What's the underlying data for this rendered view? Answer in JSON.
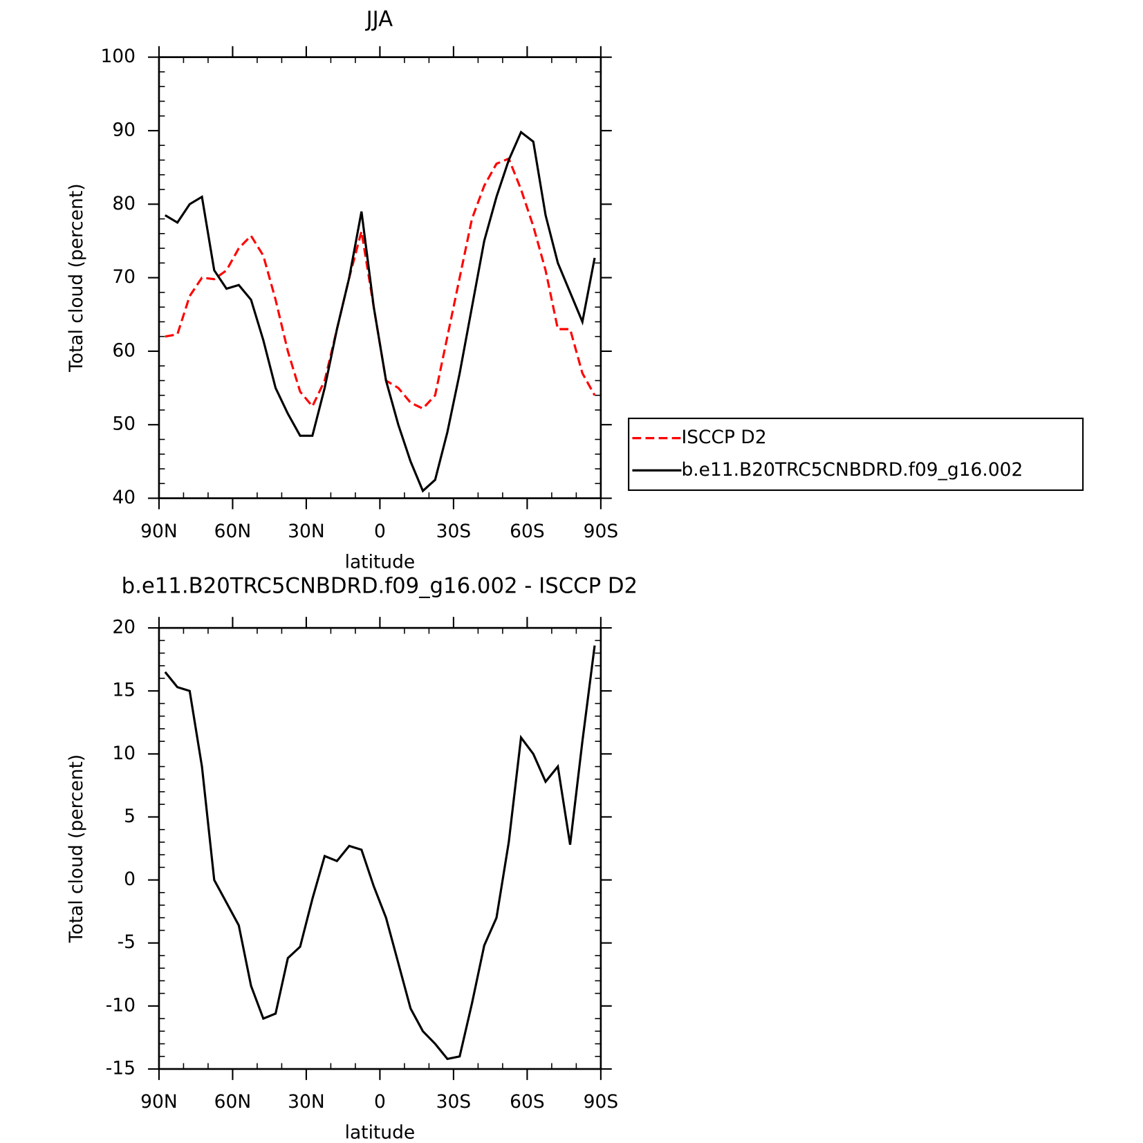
{
  "chart_data": [
    {
      "type": "line",
      "title": "JJA",
      "xlabel": "latitude",
      "ylabel": "Total cloud (percent)",
      "x": [
        87.5,
        82.5,
        77.5,
        72.5,
        67.5,
        62.5,
        57.5,
        52.5,
        47.5,
        42.5,
        37.5,
        32.5,
        27.5,
        22.5,
        17.5,
        12.5,
        7.5,
        2.5,
        -2.5,
        -7.5,
        -12.5,
        -17.5,
        -22.5,
        -27.5,
        -32.5,
        -37.5,
        -42.5,
        -47.5,
        -52.5,
        -57.5,
        -62.5,
        -67.5,
        -72.5,
        -77.5,
        -82.5,
        -87.5
      ],
      "series": [
        {
          "name": "ISCCP D2",
          "color": "#ff0000",
          "dash": true,
          "values": [
            62,
            62.3,
            67.5,
            70,
            69.8,
            71,
            74,
            75.7,
            73,
            67,
            60,
            54.5,
            52.5,
            56,
            63,
            70,
            76.3,
            66,
            56,
            55,
            53,
            52.2,
            54,
            62,
            70,
            78,
            82.5,
            85.5,
            86.2,
            82,
            77,
            71,
            63,
            63,
            57,
            54
          ]
        },
        {
          "name": "b.e11.B20TRC5CNBDRD.f09_g16.002",
          "color": "#000000",
          "dash": false,
          "values": [
            78.5,
            77.5,
            80,
            81,
            71,
            68.5,
            69,
            67,
            61.5,
            55,
            51.5,
            48.5,
            48.5,
            55,
            63,
            70,
            79,
            66,
            56,
            50,
            45,
            41,
            42.5,
            49,
            57,
            66,
            75,
            81,
            86,
            89.8,
            88.5,
            78.5,
            72,
            68,
            64,
            72.7
          ]
        }
      ],
      "xlim": [
        90,
        -90
      ],
      "ylim": [
        40,
        100
      ],
      "xticks": [
        {
          "value": 90,
          "label": "90N"
        },
        {
          "value": 60,
          "label": "60N"
        },
        {
          "value": 30,
          "label": "30N"
        },
        0,
        {
          "value": -30,
          "label": "30S"
        },
        {
          "value": -60,
          "label": "60S"
        },
        {
          "value": -90,
          "label": "90S"
        }
      ],
      "yticks": [
        40,
        50,
        60,
        70,
        80,
        90,
        100
      ],
      "legend": "right"
    },
    {
      "type": "line",
      "title": "b.e11.B20TRC5CNBDRD.f09_g16.002 - ISCCP D2",
      "xlabel": "latitude",
      "ylabel": "Total cloud (percent)",
      "x": [
        87.5,
        82.5,
        77.5,
        72.5,
        67.5,
        62.5,
        57.5,
        52.5,
        47.5,
        42.5,
        37.5,
        32.5,
        27.5,
        22.5,
        17.5,
        12.5,
        7.5,
        2.5,
        -2.5,
        -7.5,
        -12.5,
        -17.5,
        -22.5,
        -27.5,
        -32.5,
        -37.5,
        -42.5,
        -47.5,
        -52.5,
        -57.5,
        -62.5,
        -67.5,
        -72.5,
        -77.5,
        -82.5,
        -87.5
      ],
      "series": [
        {
          "color": "#000000",
          "dash": false,
          "values": [
            16.5,
            15.3,
            15,
            9,
            0,
            -1.8,
            -3.6,
            -8.4,
            -11,
            -10.6,
            -6.2,
            -5.3,
            -1.5,
            1.9,
            1.5,
            2.7,
            2.4,
            -0.5,
            -3,
            -6.6,
            -10.2,
            -12,
            -13,
            -14.2,
            -14,
            -9.8,
            -5.2,
            -3,
            3,
            11.3,
            10,
            7.8,
            9,
            2.8,
            11,
            18.6
          ]
        }
      ],
      "xlim": [
        90,
        -90
      ],
      "ylim": [
        -15,
        20
      ],
      "xticks": [
        {
          "value": 90,
          "label": "90N"
        },
        {
          "value": 60,
          "label": "60N"
        },
        {
          "value": 30,
          "label": "30N"
        },
        0,
        {
          "value": -30,
          "label": "30S"
        },
        {
          "value": -60,
          "label": "60S"
        },
        {
          "value": -90,
          "label": "90S"
        }
      ],
      "yticks": [
        -15,
        -10,
        -5,
        0,
        5,
        10,
        15,
        20
      ]
    }
  ]
}
